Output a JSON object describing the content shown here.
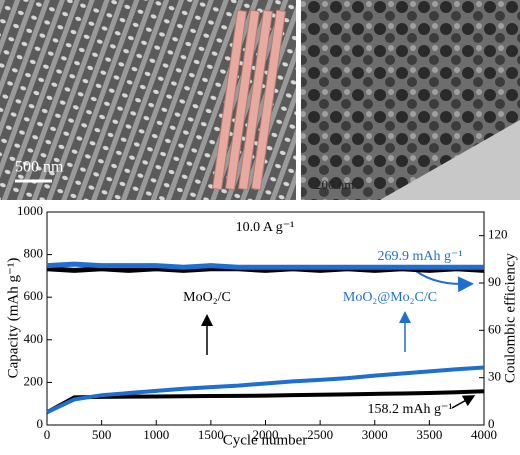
{
  "panels": [
    {
      "scale_bar": "500 nm"
    },
    {
      "scale_bar": "200 nm"
    }
  ],
  "chart_data": {
    "type": "line",
    "x_label": "Cycle number",
    "y_label": "Capacity (mAh g⁻¹)",
    "y2_label": "Coulombic efficiency",
    "annotations": [
      "10.0 A g⁻¹",
      "269.9 mAh g⁻¹",
      "158.2 mAh g⁻¹"
    ],
    "x": [
      0,
      250,
      500,
      750,
      1000,
      1250,
      1500,
      1750,
      2000,
      2250,
      2500,
      2750,
      3000,
      3250,
      3500,
      3750,
      4000
    ],
    "series": [
      {
        "name": "MoO₂/C",
        "color": "#000000",
        "values": [
          60,
          130,
          132,
          133,
          134,
          135,
          136,
          137,
          138,
          140,
          142,
          144,
          146,
          148,
          150,
          154,
          158.2
        ]
      },
      {
        "name": "MoO₂@Mo₂C/C",
        "color": "#1f6fd1",
        "values": [
          60,
          120,
          140,
          150,
          160,
          170,
          178,
          185,
          195,
          205,
          212,
          220,
          232,
          242,
          252,
          262,
          269.9
        ]
      },
      {
        "color": "#000000",
        "axis": "y2",
        "values": [
          99,
          98,
          99,
          98,
          99,
          98,
          99,
          99,
          98,
          99,
          98,
          99,
          98,
          99,
          98,
          99,
          98
        ]
      },
      {
        "color": "#1f6fd1",
        "axis": "y2",
        "values": [
          101,
          102,
          101,
          101,
          101,
          100,
          101,
          100,
          100,
          100,
          100,
          100,
          100,
          100,
          100,
          100,
          100
        ]
      }
    ],
    "xlim": [
      0,
      4000
    ],
    "xticks": [
      0,
      500,
      1000,
      1500,
      2000,
      2500,
      3000,
      3500,
      4000
    ],
    "ylim": [
      0,
      1000
    ],
    "yticks": [
      0,
      200,
      400,
      600,
      800,
      1000
    ],
    "y2lim": [
      0,
      135
    ],
    "y2ticks": [
      0,
      30,
      60,
      90,
      120
    ],
    "grid": false
  }
}
